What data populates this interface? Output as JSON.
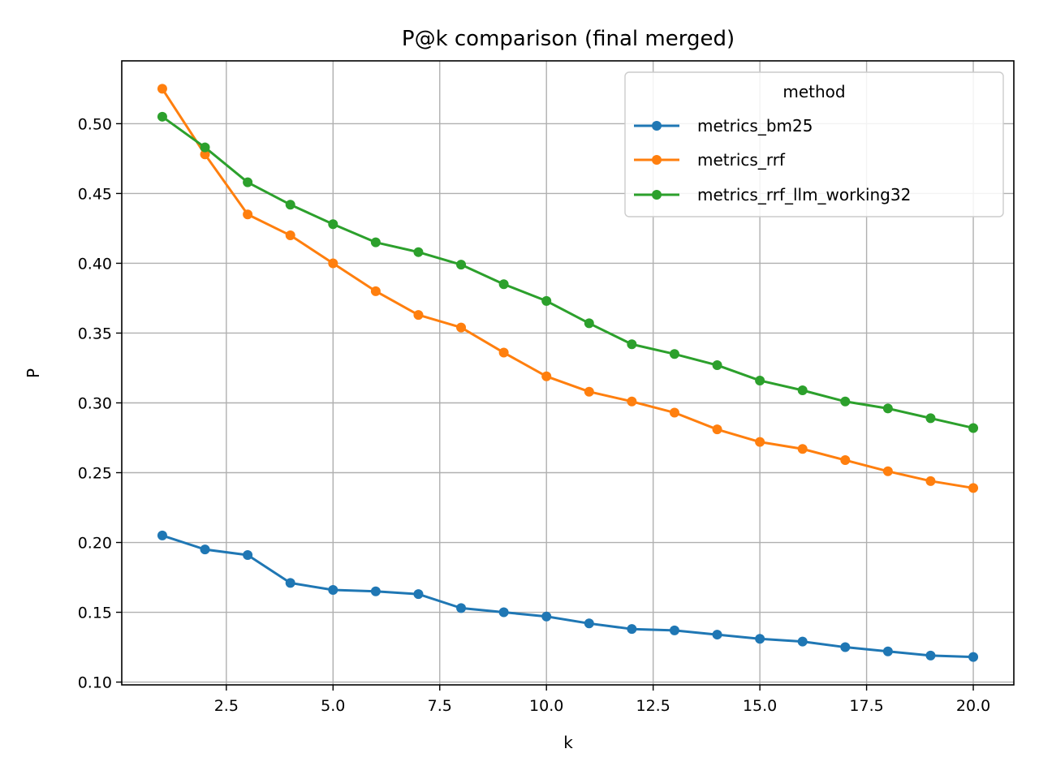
{
  "chart_data": {
    "type": "line",
    "title": "P@k comparison (final merged)",
    "xlabel": "k",
    "ylabel": "P",
    "xlim": [
      0.05,
      20.95
    ],
    "ylim": [
      0.098,
      0.545
    ],
    "x_ticks": [
      2.5,
      5.0,
      7.5,
      10.0,
      12.5,
      15.0,
      17.5,
      20.0
    ],
    "x_tick_labels": [
      "2.5",
      "5.0",
      "7.5",
      "10.0",
      "12.5",
      "15.0",
      "17.5",
      "20.0"
    ],
    "y_ticks": [
      0.1,
      0.15,
      0.2,
      0.25,
      0.3,
      0.35,
      0.4,
      0.45,
      0.5
    ],
    "y_tick_labels": [
      "0.10",
      "0.15",
      "0.20",
      "0.25",
      "0.30",
      "0.35",
      "0.40",
      "0.45",
      "0.50"
    ],
    "grid": true,
    "legend": {
      "title": "method",
      "placement": "top-right"
    },
    "x": [
      1,
      2,
      3,
      4,
      5,
      6,
      7,
      8,
      9,
      10,
      11,
      12,
      13,
      14,
      15,
      16,
      17,
      18,
      19,
      20
    ],
    "series": [
      {
        "name": "metrics_bm25",
        "color": "#1f77b4",
        "values": [
          0.205,
          0.195,
          0.191,
          0.171,
          0.166,
          0.165,
          0.163,
          0.153,
          0.15,
          0.147,
          0.142,
          0.138,
          0.137,
          0.134,
          0.131,
          0.129,
          0.125,
          0.122,
          0.119,
          0.118
        ]
      },
      {
        "name": "metrics_rrf",
        "color": "#ff7f0e",
        "values": [
          0.525,
          0.478,
          0.435,
          0.42,
          0.4,
          0.38,
          0.363,
          0.354,
          0.336,
          0.319,
          0.308,
          0.301,
          0.293,
          0.281,
          0.272,
          0.267,
          0.259,
          0.251,
          0.244,
          0.239
        ]
      },
      {
        "name": "metrics_rrf_llm_working32",
        "color": "#2ca02c",
        "values": [
          0.505,
          0.483,
          0.458,
          0.442,
          0.428,
          0.415,
          0.408,
          0.399,
          0.385,
          0.373,
          0.357,
          0.342,
          0.335,
          0.327,
          0.316,
          0.309,
          0.301,
          0.296,
          0.289,
          0.282
        ]
      }
    ]
  }
}
